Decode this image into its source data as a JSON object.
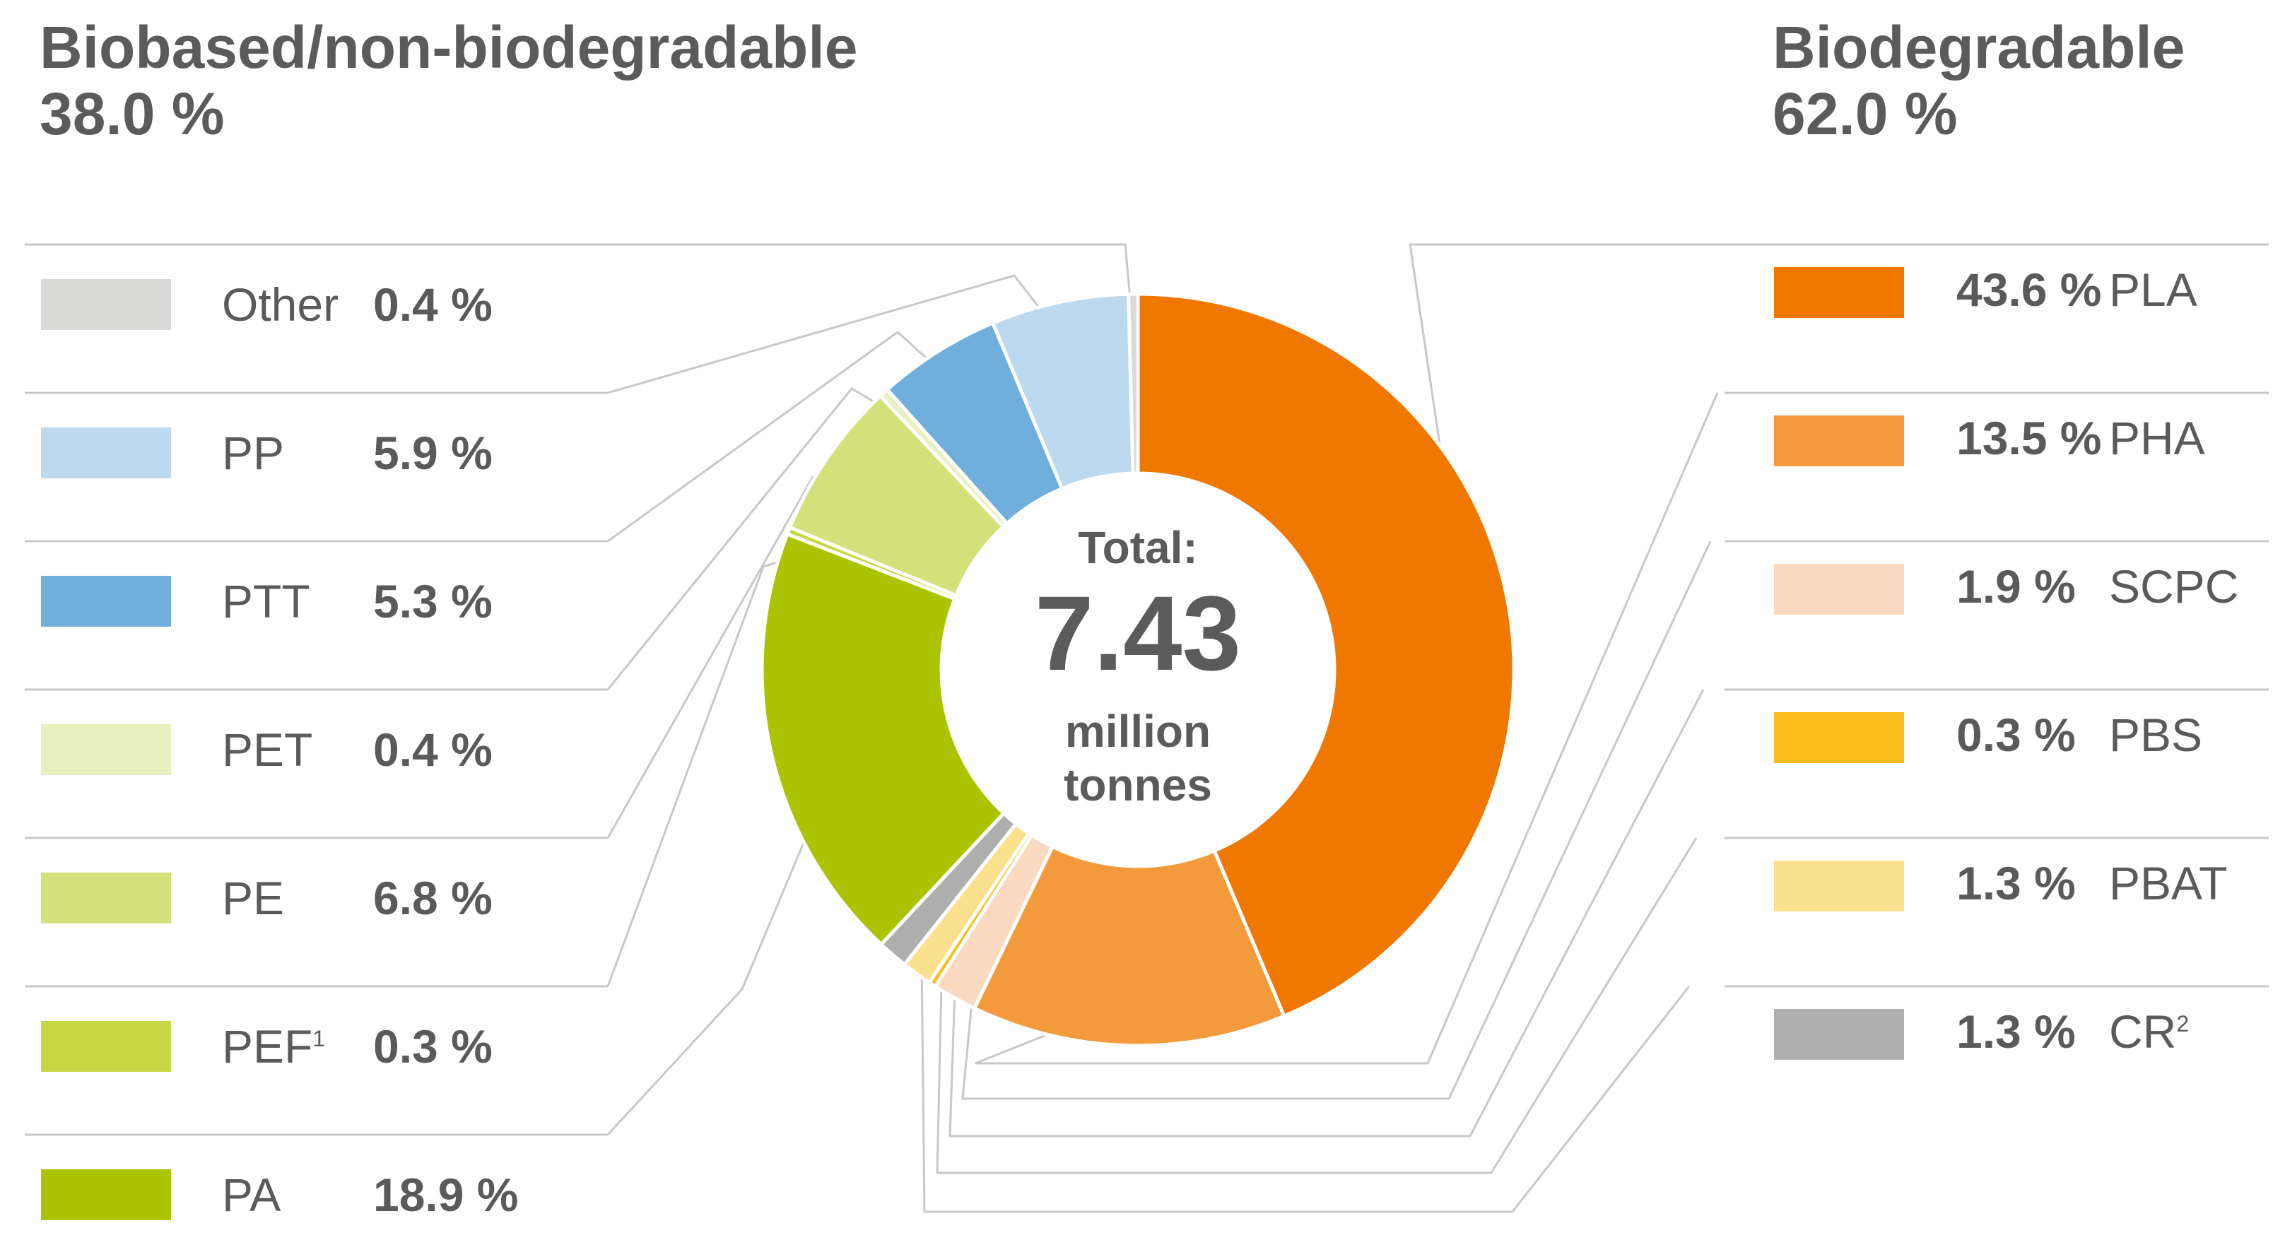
{
  "header_left": {
    "title": "Biobased/non-biodegradable",
    "percent": "38.0 %"
  },
  "header_right": {
    "title": "Biodegradable",
    "percent": "62.0 %"
  },
  "center": {
    "top": "Total:",
    "value": "7.43",
    "unit_line1": "million",
    "unit_line2": "tonnes"
  },
  "legend_left": [
    {
      "name": "Other",
      "sup": "",
      "value": "0.4 %",
      "color": "#d9d9d7"
    },
    {
      "name": "PP",
      "sup": "",
      "value": "5.9 %",
      "color": "#bcd9ef"
    },
    {
      "name": "PTT",
      "sup": "",
      "value": "5.3 %",
      "color": "#70aedc"
    },
    {
      "name": "PET",
      "sup": "",
      "value": "0.4 %",
      "color": "#e8f0c0"
    },
    {
      "name": "PE",
      "sup": "",
      "value": "6.8 %",
      "color": "#d4e07a"
    },
    {
      "name": "PEF",
      "sup": "1",
      "value": "0.3 %",
      "color": "#c5d843"
    },
    {
      "name": "PA",
      "sup": "",
      "value": "18.9 %",
      "color": "#abc402"
    }
  ],
  "legend_right": [
    {
      "name": "PLA",
      "value": "43.6 %",
      "color": "#f07800"
    },
    {
      "name": "PHA",
      "value": "13.5 %",
      "color": "#f29a3c"
    },
    {
      "name": "SCPC",
      "value": "1.9 %",
      "color": "#f9d9bf"
    },
    {
      "name": "PBS",
      "value": "0.3 %",
      "color": "#fbbc1e"
    },
    {
      "name": "PBAT",
      "value": "1.3 %",
      "color": "#fbe08e"
    },
    {
      "name": "CR",
      "sup": "2",
      "value": "1.3 %",
      "color": "#aeaeae"
    }
  ],
  "chart_data": {
    "type": "pie",
    "donut": true,
    "title": "",
    "unit": "%",
    "slices": [
      {
        "label": "PLA",
        "value": 43.6,
        "color": "#f07800"
      },
      {
        "label": "PHA",
        "value": 13.5,
        "color": "#f29a3c"
      },
      {
        "label": "SCPC",
        "value": 1.9,
        "color": "#f9d9bf"
      },
      {
        "label": "PBS",
        "value": 0.3,
        "color": "#fbbc1e"
      },
      {
        "label": "PBAT",
        "value": 1.3,
        "color": "#fbe08e"
      },
      {
        "label": "CR",
        "value": 1.3,
        "color": "#aeaeae"
      },
      {
        "label": "PA",
        "value": 18.9,
        "color": "#abc402"
      },
      {
        "label": "PEF",
        "value": 0.3,
        "color": "#c5d843"
      },
      {
        "label": "PE",
        "value": 6.8,
        "color": "#d4e07a"
      },
      {
        "label": "PET",
        "value": 0.4,
        "color": "#e8f0c0"
      },
      {
        "label": "PTT",
        "value": 5.3,
        "color": "#70aedc"
      },
      {
        "label": "PP",
        "value": 5.9,
        "color": "#bcd9ef"
      },
      {
        "label": "Other",
        "value": 0.4,
        "color": "#d9d9d7"
      }
    ]
  }
}
